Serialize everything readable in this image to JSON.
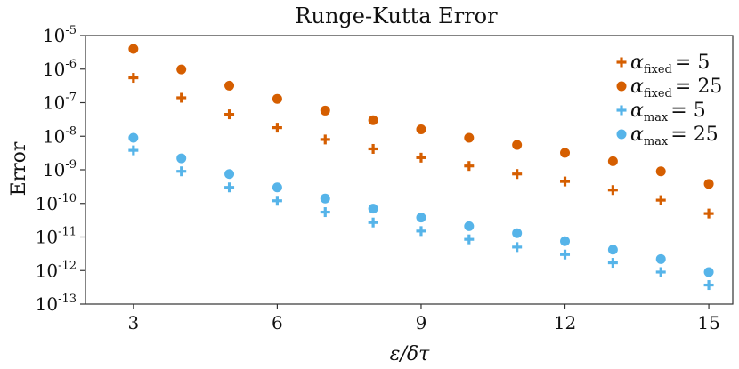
{
  "chart_data": {
    "type": "scatter",
    "title": "Runge-Kutta Error",
    "xlabel": "ε/δτ",
    "ylabel": "Error",
    "xlim": [
      2,
      15.5
    ],
    "ylim_log10": [
      -13,
      -5
    ],
    "yscale": "log",
    "xticks": [
      3,
      6,
      9,
      12,
      15
    ],
    "yticks": [
      {
        "base": "10",
        "exp": "-5",
        "log10": -5
      },
      {
        "base": "10",
        "exp": "-6",
        "log10": -6
      },
      {
        "base": "10",
        "exp": "-7",
        "log10": -7
      },
      {
        "base": "10",
        "exp": "-8",
        "log10": -8
      },
      {
        "base": "10",
        "exp": "-9",
        "log10": -9
      },
      {
        "base": "10",
        "exp": "-10",
        "log10": -10
      },
      {
        "base": "10",
        "exp": "-11",
        "log10": -11
      },
      {
        "base": "10",
        "exp": "-12",
        "log10": -12
      },
      {
        "base": "10",
        "exp": "-13",
        "log10": -13
      }
    ],
    "grid": false,
    "legend_position": "top-right",
    "x": [
      3,
      4,
      5,
      6,
      7,
      8,
      9,
      10,
      11,
      12,
      13,
      14,
      15
    ],
    "series": [
      {
        "greek": "α",
        "sub": "fixed",
        "eq": "= 5",
        "marker": "plus",
        "color": "#D55E00",
        "values": [
          5.5e-07,
          1.4e-07,
          4.5e-08,
          1.8e-08,
          8e-09,
          4.2e-09,
          2.3e-09,
          1.3e-09,
          7.5e-10,
          4.5e-10,
          2.5e-10,
          1.25e-10,
          5e-11
        ]
      },
      {
        "greek": "α",
        "sub": "fixed",
        "eq": "= 25",
        "marker": "circle",
        "color": "#D55E00",
        "values": [
          4e-06,
          9.8e-07,
          3.2e-07,
          1.3e-07,
          5.8e-08,
          3e-08,
          1.6e-08,
          9e-09,
          5.5e-09,
          3.2e-09,
          1.8e-09,
          9e-10,
          3.8e-10
        ]
      },
      {
        "greek": "α",
        "sub": "max",
        "eq": "= 5",
        "marker": "plus",
        "color": "#56B4E9",
        "values": [
          3.8e-09,
          9e-10,
          3e-10,
          1.2e-10,
          5.5e-11,
          2.7e-11,
          1.5e-11,
          8.5e-12,
          5e-12,
          3e-12,
          1.7e-12,
          9e-13,
          3.7e-13
        ]
      },
      {
        "greek": "α",
        "sub": "max",
        "eq": "= 25",
        "marker": "circle",
        "color": "#56B4E9",
        "values": [
          9e-09,
          2.2e-09,
          7.5e-10,
          3e-10,
          1.4e-10,
          7e-11,
          3.8e-11,
          2.1e-11,
          1.3e-11,
          7.5e-12,
          4.2e-12,
          2.2e-12,
          9e-13
        ]
      }
    ]
  }
}
